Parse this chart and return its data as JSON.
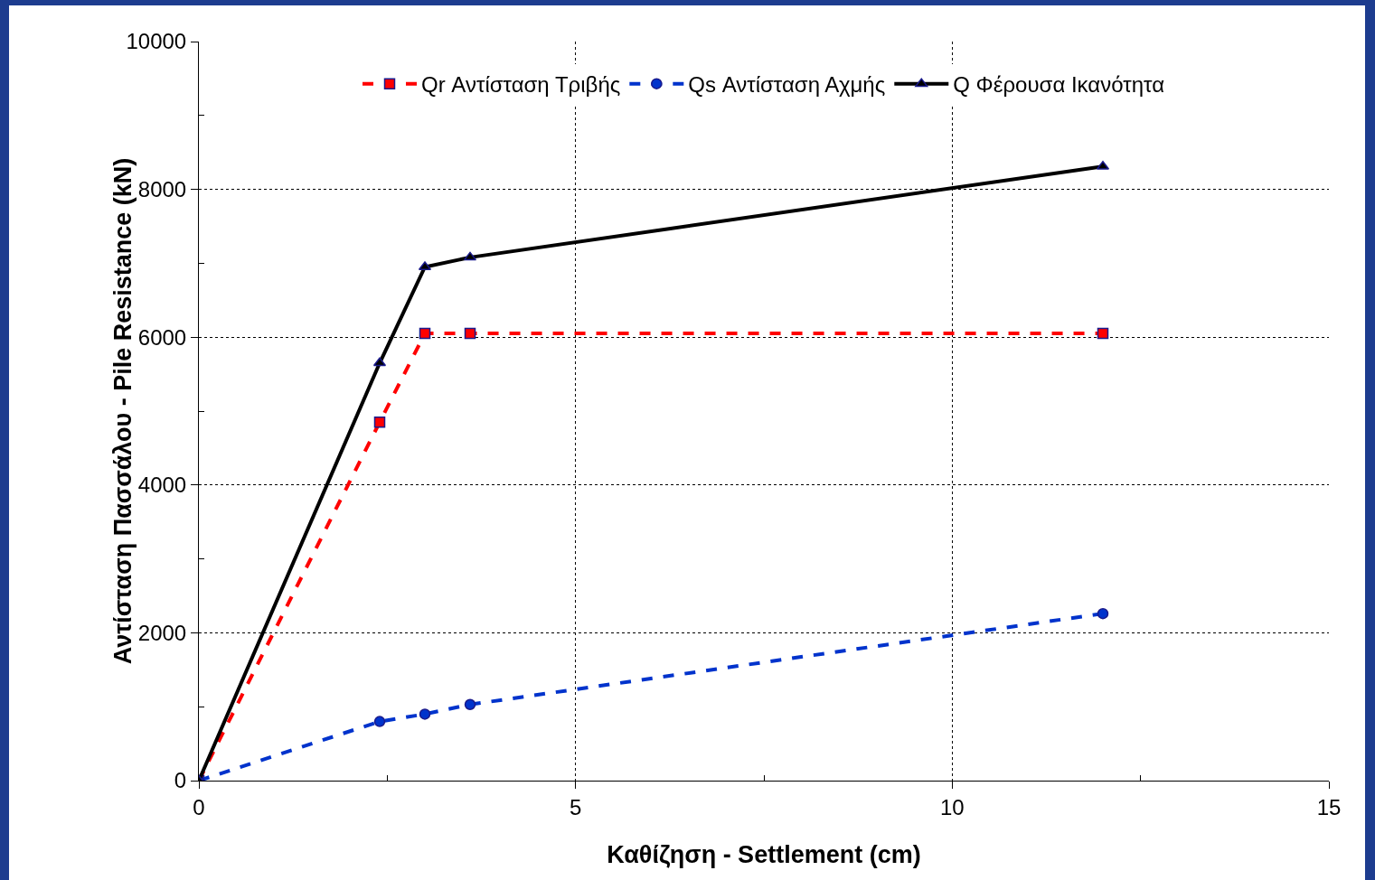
{
  "chart_data": {
    "type": "line",
    "xlabel": "Καθίζηση - Settlement (cm)",
    "ylabel": "Αντίσταση Πασσάλου - Pile Resistance (kN)",
    "x": [
      0,
      2.4,
      3.0,
      3.6,
      12.0
    ],
    "series": [
      {
        "name": "Qr Αντίσταση Τριβής",
        "color": "#ff0000",
        "line_style": "dashed",
        "marker": "square",
        "values": [
          0,
          4850,
          6050,
          6050,
          6050
        ]
      },
      {
        "name": "Qs Αντίσταση Αχμής",
        "color": "#0033cc",
        "line_style": "dashed",
        "marker": "circle",
        "values": [
          0,
          800,
          900,
          1030,
          2260
        ]
      },
      {
        "name": "Q Φέρουσα Ικανότητα",
        "color": "#000000",
        "line_style": "solid",
        "marker": "triangle",
        "values": [
          0,
          5650,
          6950,
          7080,
          8310
        ]
      }
    ],
    "xlim": [
      0,
      15
    ],
    "xticks": [
      0,
      5,
      10,
      15
    ],
    "ylim": [
      0,
      10000
    ],
    "yticks": [
      0,
      2000,
      4000,
      6000,
      8000,
      10000
    ],
    "grid": true,
    "legend": "top"
  }
}
